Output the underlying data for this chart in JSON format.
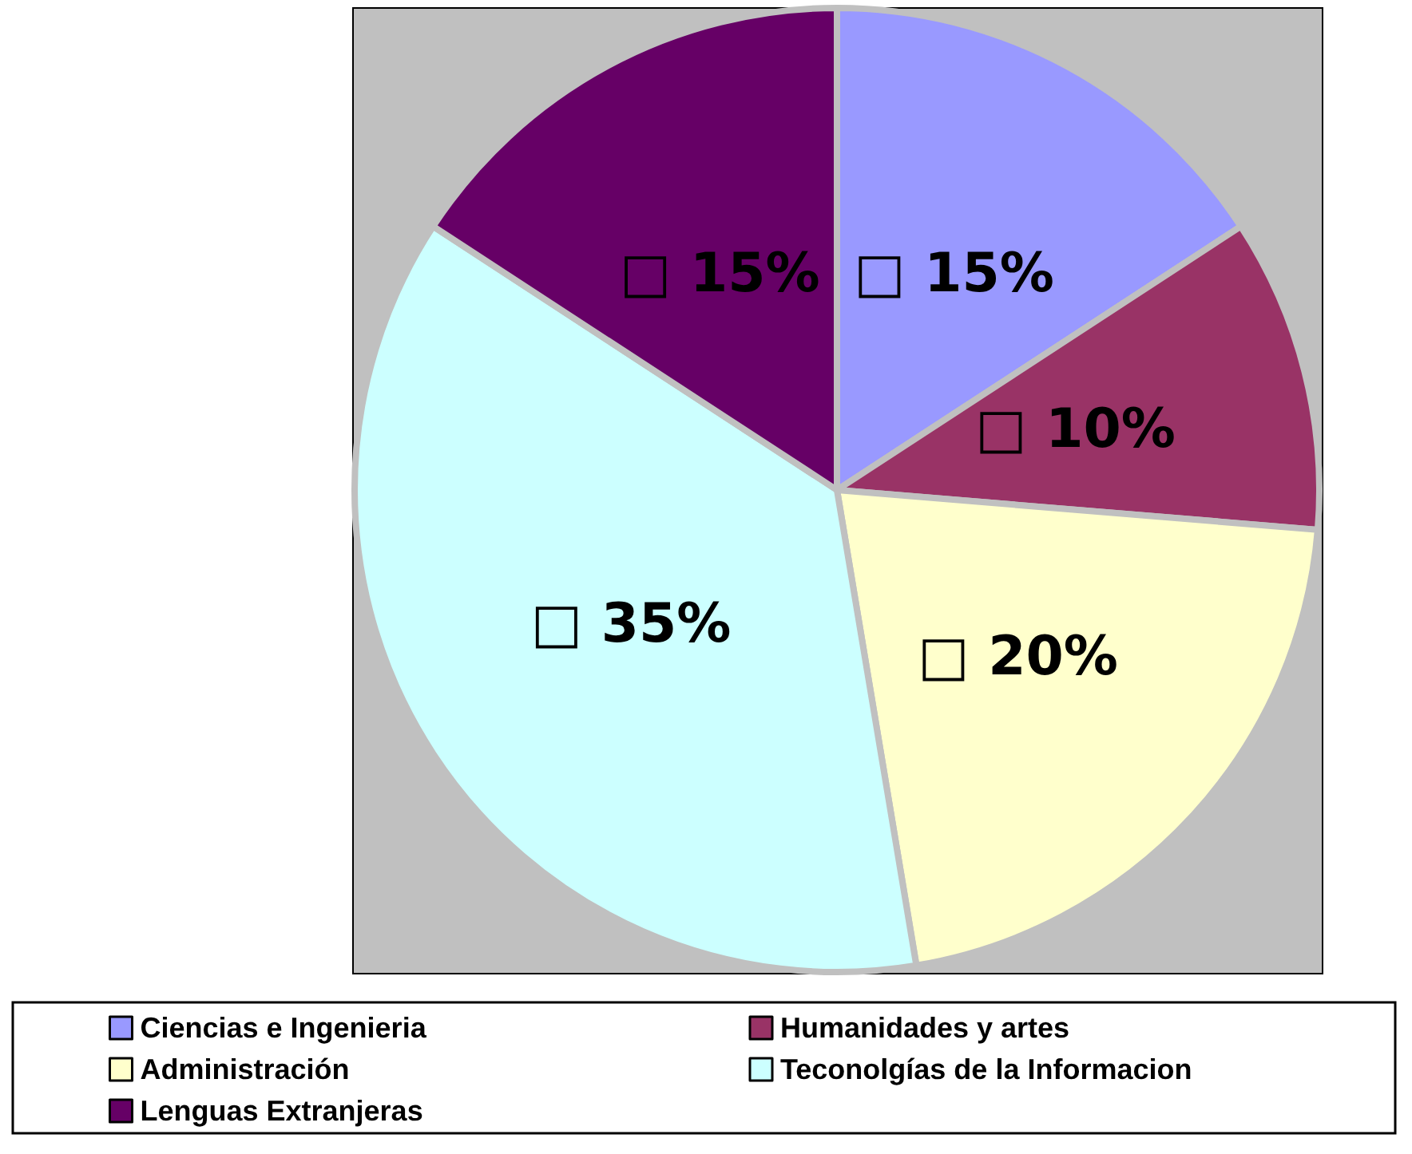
{
  "chart_data": {
    "type": "pie",
    "categories": [
      "Ciencias e Ingenieria",
      "Humanidades y artes",
      "Administración",
      "Teconolgías de la Informacion",
      "Lenguas Extranjeras"
    ],
    "values": [
      15,
      10,
      20,
      35,
      15
    ],
    "colors": [
      "#9999ff",
      "#993366",
      "#ffffcc",
      "#ccffff",
      "#660066"
    ],
    "value_labels": [
      "□ 15%",
      "□ 10%",
      "□ 20%",
      "□ 35%",
      "□ 15%"
    ],
    "legend": "bottom"
  }
}
